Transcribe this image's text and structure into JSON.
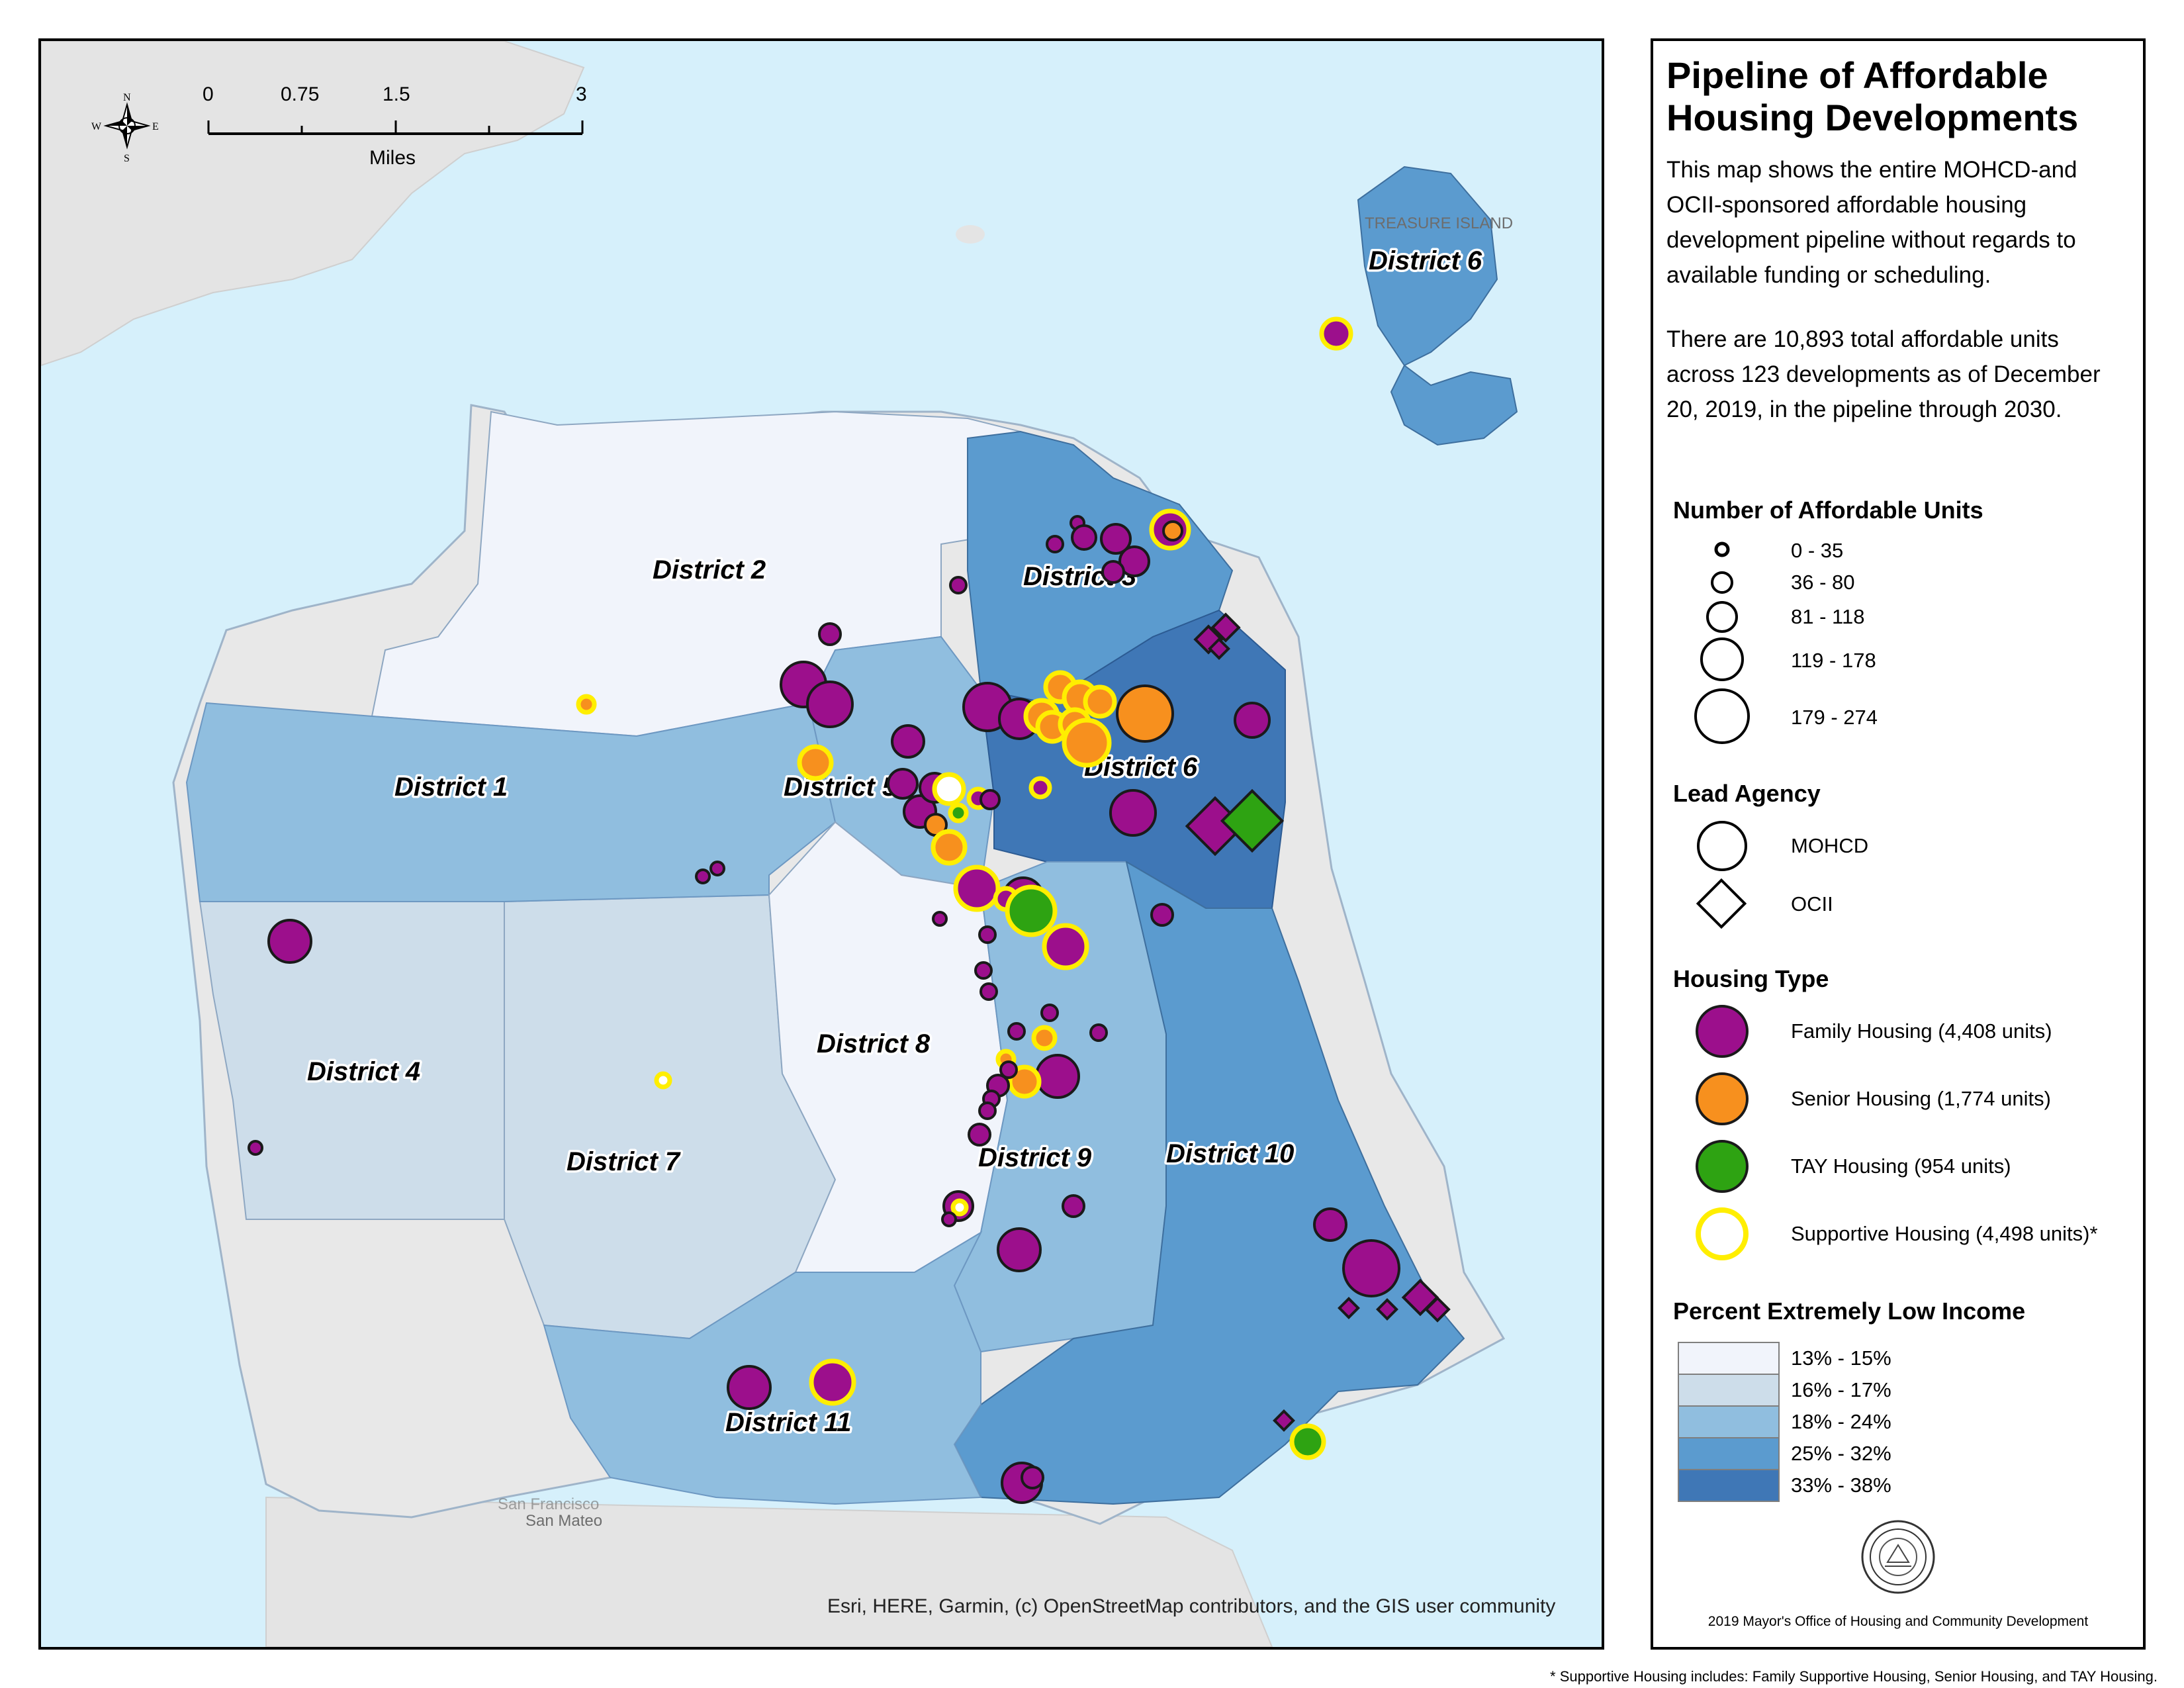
{
  "map": {
    "districts": [
      {
        "id": "d1",
        "label": "District 1",
        "class": "18% - 24%"
      },
      {
        "id": "d2",
        "label": "District 2",
        "class": "13% - 15%"
      },
      {
        "id": "d3",
        "label": "District 3",
        "class": "25% - 32%"
      },
      {
        "id": "d4",
        "label": "District 4",
        "class": "16% - 17%"
      },
      {
        "id": "d5",
        "label": "District 5",
        "class": "18% - 24%"
      },
      {
        "id": "d6",
        "label": "District 6",
        "class": "33% - 38%"
      },
      {
        "id": "d6ti",
        "label": "District 6",
        "class": "25% - 32%"
      },
      {
        "id": "d7",
        "label": "District 7",
        "class": "16% - 17%"
      },
      {
        "id": "d8",
        "label": "District 8",
        "class": "13% - 15%"
      },
      {
        "id": "d9",
        "label": "District 9",
        "class": "18% - 24%"
      },
      {
        "id": "d10",
        "label": "District 10",
        "class": "25% - 32%"
      },
      {
        "id": "d11",
        "label": "District 11",
        "class": "18% - 24%"
      }
    ],
    "basemap_labels": [
      "TREASURE ISLAND",
      "San Mateo",
      "San Francisco"
    ],
    "scale_bar": {
      "ticks": [
        "0",
        "0.75",
        "1.5",
        "3"
      ],
      "unit": "Miles"
    },
    "compass": {
      "n": "N",
      "s": "S",
      "e": "E",
      "w": "W"
    },
    "attribution": "Esri, HERE, Garmin, (c) OpenStreetMap contributors, and the GIS user community"
  },
  "legend": {
    "title": "Pipeline of Affordable Housing Developments",
    "description": "This map shows the entire MOHCD-and OCII-sponsored affordable housing development pipeline without regards to available funding or scheduling.",
    "summary": "There are 10,893 total affordable units across 123 developments as of December 20, 2019, in the pipeline through 2030.",
    "units_title": "Number of Affordable Units",
    "units_classes": [
      "0 - 35",
      "36 - 80",
      "81 - 118",
      "119 - 178",
      "179 - 274"
    ],
    "agency_title": "Lead Agency",
    "agencies": [
      {
        "label": "MOHCD",
        "shape": "circle"
      },
      {
        "label": "OCII",
        "shape": "diamond"
      }
    ],
    "housing_title": "Housing Type",
    "housing_types": [
      {
        "label": "Family Housing (4,408 units)",
        "fill": "#9c0f8c",
        "stroke": "#1a1a1a"
      },
      {
        "label": "Senior Housing (1,774 units)",
        "fill": "#f7901e",
        "stroke": "#1a1a1a"
      },
      {
        "label": "TAY Housing (954 units)",
        "fill": "#2ea312",
        "stroke": "#1a1a1a"
      },
      {
        "label": "Supportive Housing (4,498 units)*",
        "fill": "#ffffff",
        "stroke": "#ffee00"
      }
    ],
    "eli_title": "Percent Extremely Low Income",
    "eli_classes": [
      {
        "label": "13% - 15%",
        "color": "#f1f4fb"
      },
      {
        "label": "16% - 17%",
        "color": "#cdddea"
      },
      {
        "label": "18% - 24%",
        "color": "#90bedf"
      },
      {
        "label": "25% - 32%",
        "color": "#5b9bcf"
      },
      {
        "label": "33% - 38%",
        "color": "#3f77b6"
      }
    ],
    "credit": "2019 Mayor's Office of Housing and Community Development",
    "seal_icon": "city-seal-icon"
  },
  "footnote": "* Supportive Housing includes: Family Supportive Housing, Senior Housing, and TAY Housing.",
  "colors": {
    "water": "#d6f0fb",
    "land": "#e4e4e4",
    "family": "#9c0f8c",
    "senior": "#f7901e",
    "tay": "#2ea312",
    "supportive": "#ffee00"
  }
}
